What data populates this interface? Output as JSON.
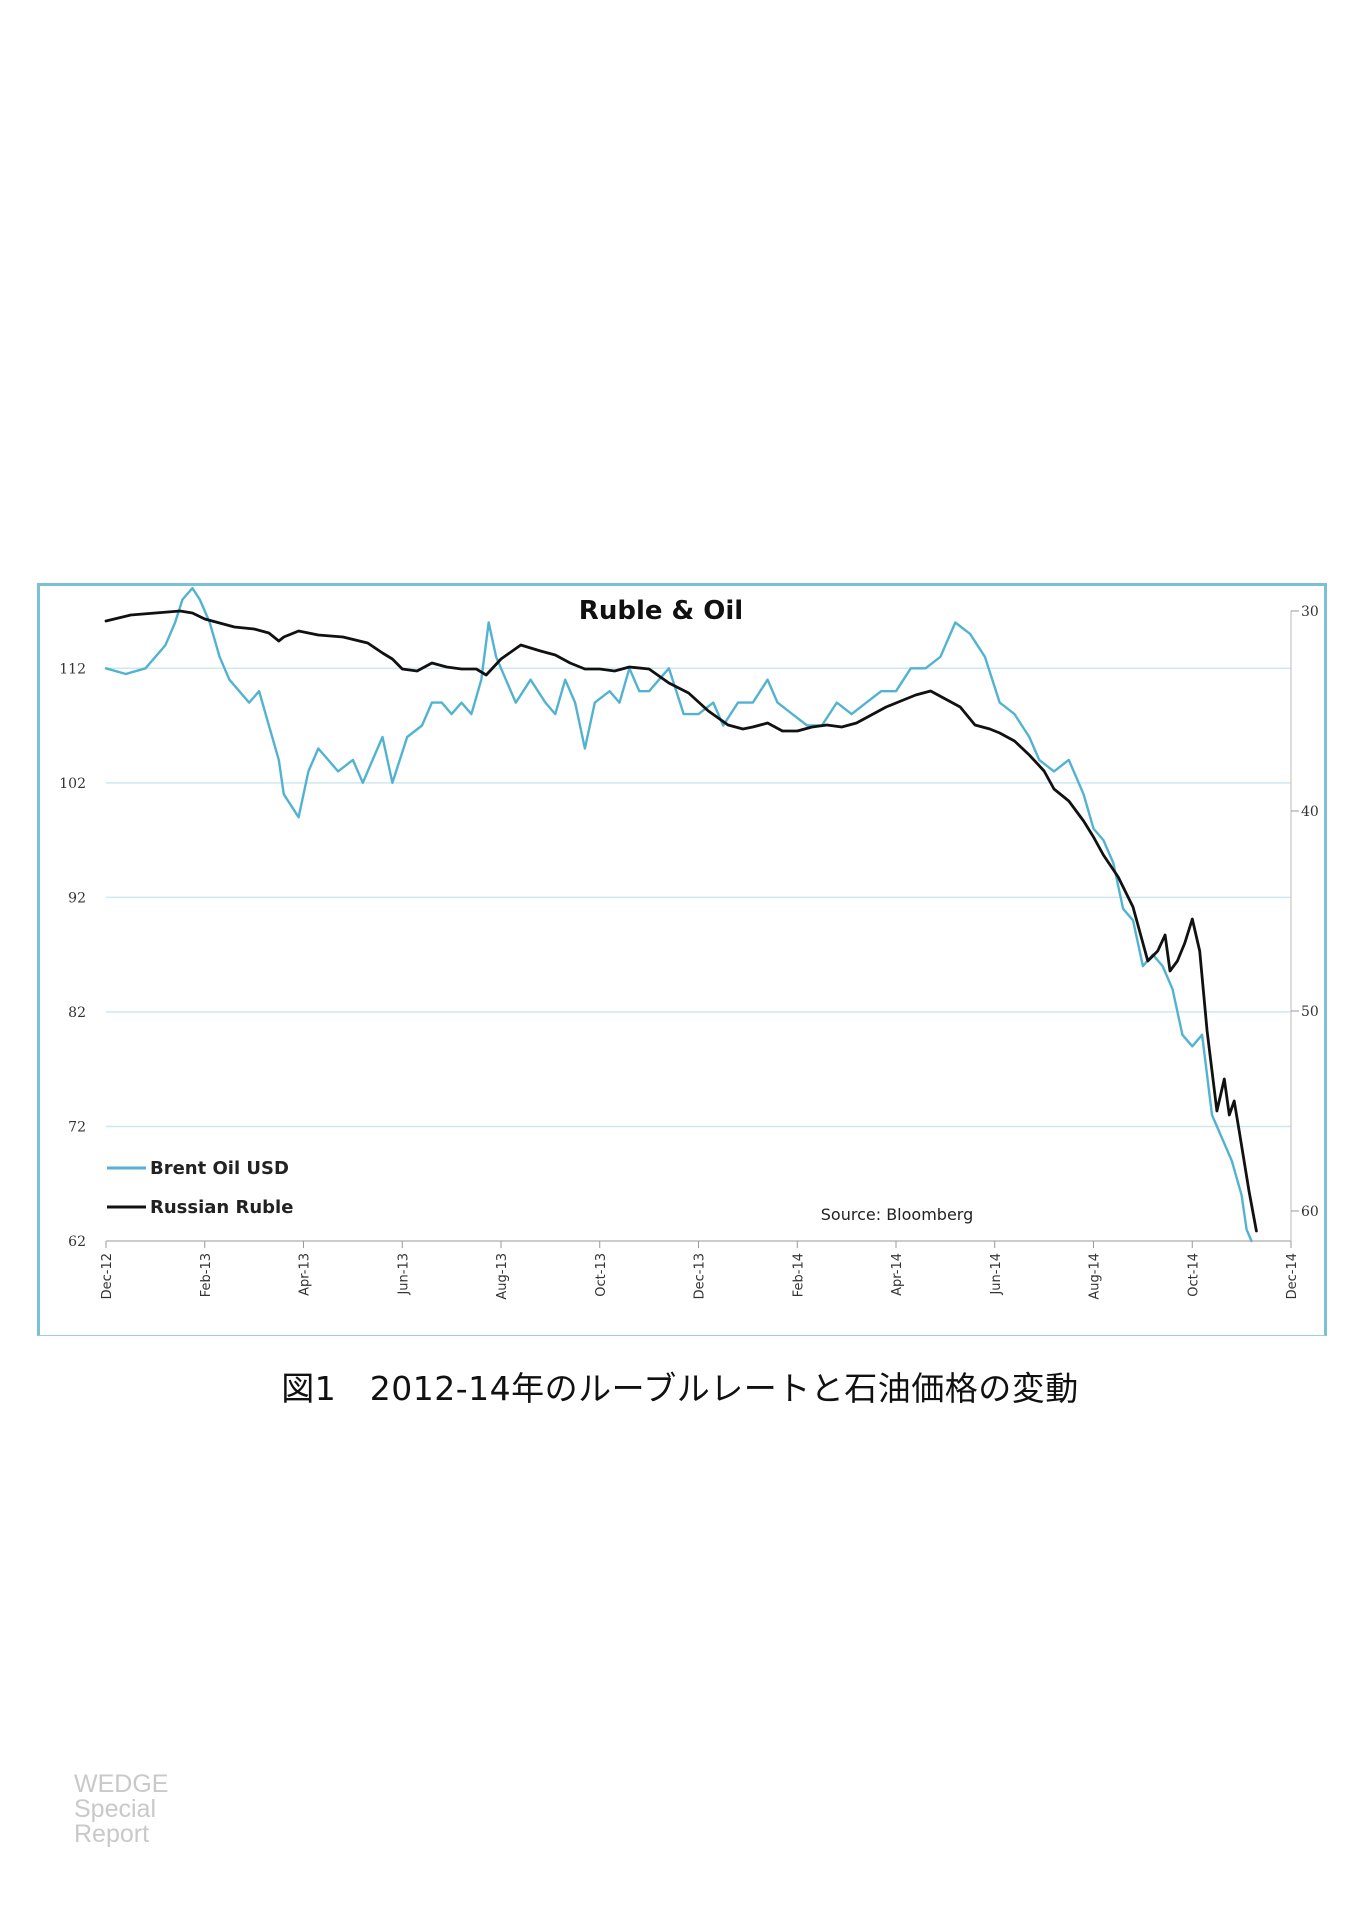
{
  "caption": "図1　2012-14年のルーブルレートと石油価格の変動",
  "watermark": [
    "WEDGE",
    "Special",
    "Report"
  ],
  "chart_data": {
    "type": "line",
    "title": "Ruble & Oil",
    "source": "Source: Bloomberg",
    "x_ticks": [
      "Dec-12",
      "Feb-13",
      "Apr-13",
      "Jun-13",
      "Aug-13",
      "Oct-13",
      "Dec-13",
      "Feb-14",
      "Apr-14",
      "Jun-14",
      "Aug-14",
      "Oct-14",
      "Dec-14"
    ],
    "x_range": [
      0,
      24
    ],
    "y_left": {
      "ticks": [
        62,
        72,
        82,
        92,
        102,
        112
      ],
      "range": [
        62,
        117
      ]
    },
    "y_right": {
      "ticks": [
        30,
        40,
        50,
        60
      ],
      "range": [
        30,
        61.5
      ],
      "inverted": true
    },
    "grid": true,
    "legend": "bottom-left",
    "colors": {
      "brent": "#52b3d0",
      "ruble": "#111111",
      "grid": "#cfe8f0"
    },
    "series": [
      {
        "name": "Brent Oil USD",
        "axis": "left",
        "x": [
          0,
          0.4,
          0.8,
          1.0,
          1.2,
          1.4,
          1.55,
          1.75,
          1.9,
          2.1,
          2.3,
          2.5,
          2.7,
          2.9,
          3.1,
          3.3,
          3.5,
          3.6,
          3.9,
          4.1,
          4.3,
          4.5,
          4.7,
          5.0,
          5.2,
          5.4,
          5.6,
          5.8,
          6.1,
          6.4,
          6.6,
          6.8,
          7.0,
          7.2,
          7.4,
          7.6,
          7.75,
          7.9,
          8.1,
          8.3,
          8.6,
          8.9,
          9.1,
          9.3,
          9.5,
          9.7,
          9.9,
          10.2,
          10.4,
          10.6,
          10.8,
          11.0,
          11.2,
          11.4,
          11.7,
          12.0,
          12.3,
          12.5,
          12.8,
          13.1,
          13.4,
          13.6,
          13.9,
          14.2,
          14.5,
          14.8,
          15.1,
          15.4,
          15.7,
          16.0,
          16.3,
          16.6,
          16.9,
          17.2,
          17.5,
          17.8,
          18.1,
          18.4,
          18.7,
          18.9,
          19.2,
          19.5,
          19.8,
          20.0,
          20.2,
          20.4,
          20.6,
          20.8,
          21.0,
          21.2,
          21.4,
          21.6,
          21.8,
          22.0,
          22.2,
          22.4,
          22.6,
          22.8,
          23.0,
          23.1,
          23.2
        ],
        "values": [
          112,
          111.5,
          112,
          113,
          114,
          116,
          118,
          119,
          118,
          116,
          113,
          111,
          110,
          109,
          110,
          107,
          104,
          101,
          99,
          103,
          105,
          104,
          103,
          104,
          102,
          104,
          106,
          102,
          106,
          107,
          109,
          109,
          108,
          109,
          108,
          111,
          116,
          113,
          111,
          109,
          111,
          109,
          108,
          111,
          109,
          105,
          109,
          110,
          109,
          112,
          110,
          110,
          111,
          112,
          108,
          108,
          109,
          107,
          109,
          109,
          111,
          109,
          108,
          107,
          107,
          109,
          108,
          109,
          110,
          110,
          112,
          112,
          113,
          116,
          115,
          113,
          109,
          108,
          106,
          104,
          103,
          104,
          101,
          98,
          97,
          95,
          91,
          90,
          86,
          87,
          86,
          84,
          80,
          79,
          80,
          73,
          71,
          69,
          66,
          63,
          62
        ],
        "color": "#52b3d0"
      },
      {
        "name": "Russian Ruble",
        "axis": "right",
        "x": [
          0,
          0.5,
          1.0,
          1.5,
          1.75,
          2.0,
          2.3,
          2.6,
          3.0,
          3.3,
          3.5,
          3.6,
          3.9,
          4.3,
          4.8,
          5.3,
          5.6,
          5.8,
          6.0,
          6.3,
          6.6,
          6.9,
          7.2,
          7.5,
          7.7,
          8.0,
          8.4,
          8.8,
          9.1,
          9.4,
          9.7,
          10.0,
          10.3,
          10.6,
          11.0,
          11.4,
          11.8,
          12.2,
          12.6,
          12.9,
          13.1,
          13.4,
          13.7,
          14.0,
          14.3,
          14.6,
          14.9,
          15.2,
          15.5,
          15.8,
          16.1,
          16.4,
          16.7,
          17.0,
          17.3,
          17.6,
          17.9,
          18.1,
          18.4,
          18.7,
          19.0,
          19.2,
          19.5,
          19.8,
          20.0,
          20.2,
          20.5,
          20.8,
          21.1,
          21.3,
          21.45,
          21.55,
          21.7,
          21.85,
          22.0,
          22.15,
          22.3,
          22.5,
          22.65,
          22.75,
          22.85,
          22.95,
          23.05,
          23.15,
          23.3
        ],
        "values": [
          30.5,
          30.2,
          30.1,
          30,
          30.1,
          30.4,
          30.6,
          30.8,
          30.9,
          31.1,
          31.5,
          31.3,
          31.0,
          31.2,
          31.3,
          31.6,
          32.1,
          32.4,
          32.9,
          33.0,
          32.6,
          32.8,
          32.9,
          32.9,
          33.2,
          32.4,
          31.7,
          32.0,
          32.2,
          32.6,
          32.9,
          32.9,
          33.0,
          32.8,
          32.9,
          33.6,
          34.1,
          35.0,
          35.7,
          35.9,
          35.8,
          35.6,
          36.0,
          36.0,
          35.8,
          35.7,
          35.8,
          35.6,
          35.2,
          34.8,
          34.5,
          34.2,
          34.0,
          34.4,
          34.8,
          35.7,
          35.9,
          36.1,
          36.5,
          37.2,
          38.0,
          38.9,
          39.5,
          40.5,
          41.3,
          42.2,
          43.3,
          44.8,
          47.5,
          47.0,
          46.2,
          48.0,
          47.5,
          46.6,
          45.4,
          47.0,
          51.0,
          55.0,
          53.4,
          55.2,
          54.5,
          56.0,
          57.5,
          59.0,
          61.0
        ],
        "color": "#111111"
      }
    ]
  }
}
